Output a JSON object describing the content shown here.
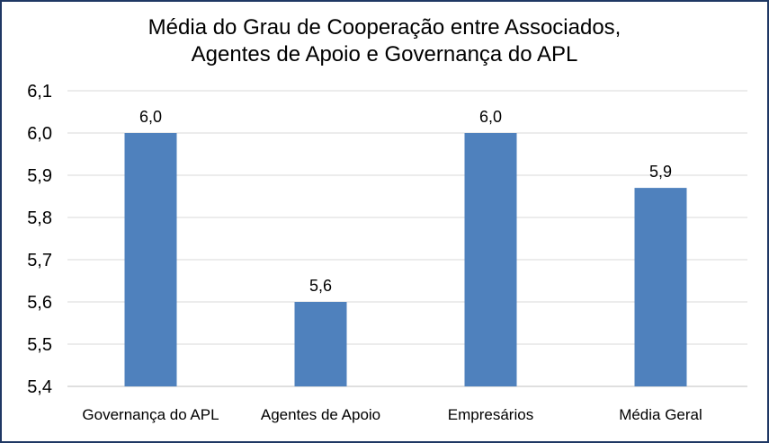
{
  "chart_data": {
    "type": "bar",
    "title": "Média do Grau de Cooperação entre Associados, Agentes de Apoio e Governança do APL",
    "title_lines": [
      "Média do Grau de Cooperação entre Associados,",
      "Agentes de Apoio e Governança do APL"
    ],
    "categories": [
      "Governança do APL",
      "Agentes de Apoio",
      "Empresários",
      "Média Geral"
    ],
    "values": [
      6.0,
      5.6,
      6.0,
      5.87
    ],
    "data_labels": [
      "6,0",
      "5,6",
      "6,0",
      "5,9"
    ],
    "xlabel": "",
    "ylabel": "",
    "ylim": [
      5.4,
      6.1
    ],
    "y_ticks": [
      5.4,
      5.5,
      5.6,
      5.7,
      5.8,
      5.9,
      6.0,
      6.1
    ],
    "y_tick_labels": [
      "5,4",
      "5,5",
      "5,6",
      "5,7",
      "5,8",
      "5,9",
      "6,0",
      "6,1"
    ],
    "grid": true,
    "legend": "none",
    "bar_color": "#4f81bd",
    "grid_color": "#d9d9d9",
    "border_color": "#1f3864"
  }
}
